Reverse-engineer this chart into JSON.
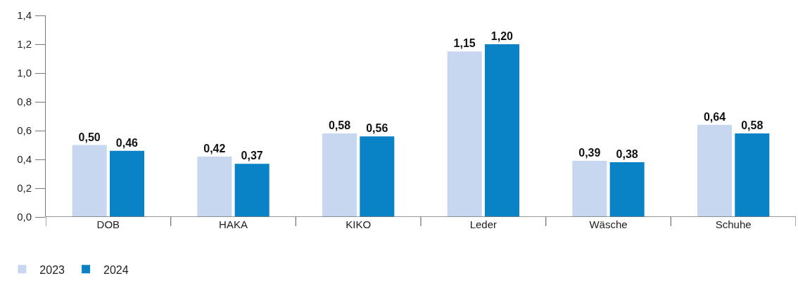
{
  "chart_data": {
    "type": "bar",
    "categories": [
      "DOB",
      "HAKA",
      "KIKO",
      "Leder",
      "Wäsche",
      "Schuhe"
    ],
    "series": [
      {
        "name": "2023",
        "color": "#c8d7f0",
        "values": [
          0.5,
          0.42,
          0.58,
          1.15,
          0.39,
          0.64
        ],
        "value_labels": [
          "0,50",
          "0,42",
          "0,58",
          "1,15",
          "0,39",
          "0,64"
        ]
      },
      {
        "name": "2024",
        "color": "#0a82c6",
        "values": [
          0.46,
          0.37,
          0.56,
          1.2,
          0.38,
          0.58
        ],
        "value_labels": [
          "0,46",
          "0,37",
          "0,56",
          "1,20",
          "0,38",
          "0,58"
        ]
      }
    ],
    "ylim": [
      0,
      1.4
    ],
    "yticks": [
      {
        "value": 0,
        "label": "0,0"
      },
      {
        "value": 0.2,
        "label": "0,2"
      },
      {
        "value": 0.4,
        "label": "0,4"
      },
      {
        "value": 0.6,
        "label": "0,6"
      },
      {
        "value": 0.8,
        "label": "0,8"
      },
      {
        "value": 1.0,
        "label": "1,0"
      },
      {
        "value": 1.2,
        "label": "1,2"
      },
      {
        "value": 1.4,
        "label": "1,4"
      }
    ],
    "legend": "bottom left"
  }
}
